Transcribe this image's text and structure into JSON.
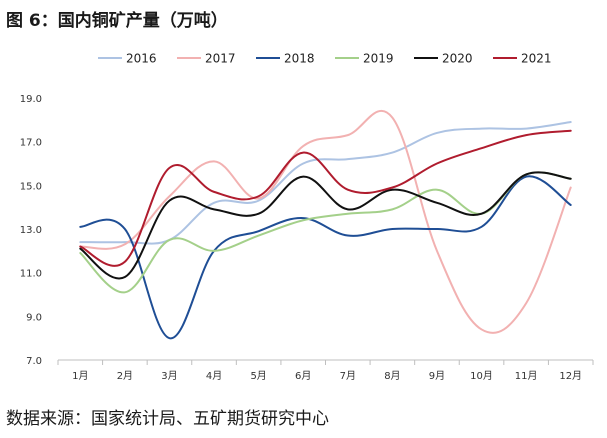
{
  "figure_title": "图 6：国内铜矿产量（万吨）",
  "source": "数据来源：国家统计局、五矿期货研究中心",
  "chart_data": {
    "type": "line",
    "title": "",
    "xlabel": "",
    "ylabel": "",
    "categories": [
      "1月",
      "2月",
      "3月",
      "4月",
      "5月",
      "6月",
      "7月",
      "8月",
      "9月",
      "10月",
      "11月",
      "12月"
    ],
    "ylim": [
      7.0,
      19.0
    ],
    "yticks": [
      7.0,
      9.0,
      11.0,
      13.0,
      15.0,
      17.0,
      19.0
    ],
    "ytick_labels": [
      "7.0",
      "9.0",
      "11.0",
      "13.0",
      "15.0",
      "17.0",
      "19.0"
    ],
    "grid": false,
    "legend_position": "top",
    "series": [
      {
        "name": "2016",
        "color": "#adc3e3",
        "values": [
          12.4,
          12.4,
          12.5,
          14.2,
          14.3,
          16.0,
          16.2,
          16.5,
          17.4,
          17.6,
          17.6,
          17.9
        ]
      },
      {
        "name": "2017",
        "color": "#f2b1b1",
        "values": [
          12.2,
          12.3,
          14.5,
          16.1,
          14.4,
          16.8,
          17.3,
          18.1,
          12.0,
          8.4,
          9.6,
          14.9
        ]
      },
      {
        "name": "2018",
        "color": "#1f4e95",
        "values": [
          13.1,
          13.0,
          8.0,
          12.0,
          12.9,
          13.5,
          12.7,
          13.0,
          13.0,
          13.1,
          15.4,
          14.1
        ]
      },
      {
        "name": "2019",
        "color": "#a4d08a",
        "values": [
          11.9,
          10.1,
          12.5,
          12.0,
          12.7,
          13.4,
          13.7,
          13.9,
          14.8,
          13.7,
          15.5,
          15.3
        ]
      },
      {
        "name": "2020",
        "color": "#111111",
        "values": [
          12.1,
          10.8,
          14.3,
          13.9,
          13.7,
          15.4,
          13.9,
          14.8,
          14.2,
          13.7,
          15.5,
          15.3
        ]
      },
      {
        "name": "2021",
        "color": "#b01c2e",
        "values": [
          12.2,
          11.5,
          15.8,
          14.7,
          14.5,
          16.5,
          14.8,
          14.9,
          16.0,
          16.7,
          17.3,
          17.5
        ]
      }
    ]
  }
}
